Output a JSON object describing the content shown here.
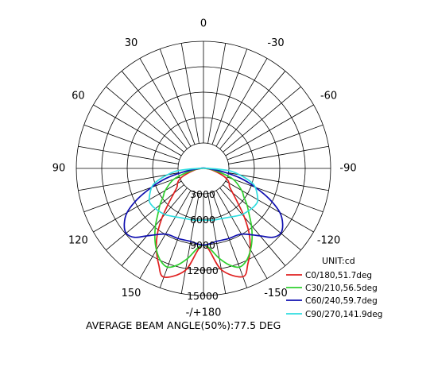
{
  "chart_data": {
    "type": "polar",
    "title": "",
    "footer": "AVERAGE BEAM  ANGLE(50%):77.5  DEG",
    "unit_label": "UNIT:cd",
    "angle_labels": [
      "-/+180",
      "150",
      "120",
      "90",
      "60",
      "30",
      "0",
      "-30",
      "-60",
      "-90",
      "-120",
      "-150"
    ],
    "angle_label_values": [
      180,
      150,
      120,
      90,
      60,
      30,
      0,
      -30,
      -60,
      -90,
      -120,
      -150
    ],
    "radial_labels": [
      "3000",
      "6000",
      "9000",
      "12000",
      "15000"
    ],
    "radial_label_values": [
      3000,
      6000,
      9000,
      12000,
      15000
    ],
    "rmax": 15000,
    "angle_grid_step_deg": 10,
    "grid": true,
    "legend_position": "bottom-right",
    "series": [
      {
        "name": "C0/180,51.7deg",
        "color": "#e02020",
        "points": [
          [
            0,
            9050
          ],
          [
            10,
            12150
          ],
          [
            20,
            13600
          ],
          [
            25,
            12400
          ],
          [
            30,
            11000
          ],
          [
            35,
            9400
          ],
          [
            40,
            7500
          ],
          [
            45,
            5700
          ],
          [
            50,
            4500
          ],
          [
            55,
            3750
          ],
          [
            60,
            3500
          ],
          [
            65,
            3100
          ],
          [
            70,
            2400
          ],
          [
            80,
            1000
          ],
          [
            90,
            150
          ],
          [
            -90,
            150
          ],
          [
            -80,
            1050
          ],
          [
            -70,
            2450
          ],
          [
            -65,
            3150
          ],
          [
            -60,
            3550
          ],
          [
            -55,
            3800
          ],
          [
            -50,
            4550
          ],
          [
            -45,
            5800
          ],
          [
            -40,
            7600
          ],
          [
            -35,
            9500
          ],
          [
            -30,
            11100
          ],
          [
            -25,
            12500
          ],
          [
            -20,
            13650
          ],
          [
            -10,
            12200
          ]
        ]
      },
      {
        "name": "C30/210,56.5deg",
        "color": "#30d030",
        "points": [
          [
            0,
            9050
          ],
          [
            10,
            10800
          ],
          [
            15,
            11800
          ],
          [
            20,
            12400
          ],
          [
            25,
            12000
          ],
          [
            30,
            11100
          ],
          [
            35,
            10000
          ],
          [
            40,
            8800
          ],
          [
            45,
            7600
          ],
          [
            50,
            6700
          ],
          [
            55,
            5800
          ],
          [
            60,
            5200
          ],
          [
            70,
            3700
          ],
          [
            80,
            1400
          ],
          [
            90,
            300
          ],
          [
            -90,
            300
          ],
          [
            -80,
            1400
          ],
          [
            -70,
            3700
          ],
          [
            -60,
            5200
          ],
          [
            -55,
            5800
          ],
          [
            -50,
            6700
          ],
          [
            -45,
            7600
          ],
          [
            -40,
            8800
          ],
          [
            -35,
            10000
          ],
          [
            -30,
            11100
          ],
          [
            -25,
            12000
          ],
          [
            -20,
            12400
          ],
          [
            -15,
            11800
          ],
          [
            -10,
            10800
          ]
        ]
      },
      {
        "name": "C60/240,59.7deg",
        "color": "#1010b0",
        "points": [
          [
            0,
            9050
          ],
          [
            10,
            8750
          ],
          [
            20,
            8800
          ],
          [
            30,
            8950
          ],
          [
            40,
            10400
          ],
          [
            45,
            11500
          ],
          [
            50,
            11900
          ],
          [
            55,
            11400
          ],
          [
            60,
            10400
          ],
          [
            65,
            8600
          ],
          [
            70,
            6500
          ],
          [
            75,
            4600
          ],
          [
            80,
            2400
          ],
          [
            90,
            450
          ],
          [
            -90,
            450
          ],
          [
            -80,
            2400
          ],
          [
            -75,
            4600
          ],
          [
            -70,
            6500
          ],
          [
            -65,
            8600
          ],
          [
            -60,
            10400
          ],
          [
            -55,
            11400
          ],
          [
            -50,
            11900
          ],
          [
            -45,
            11500
          ],
          [
            -40,
            10400
          ],
          [
            -30,
            8950
          ],
          [
            -20,
            8800
          ],
          [
            -10,
            8750
          ]
        ]
      },
      {
        "name": "C90/270,141.9deg",
        "color": "#30dde0",
        "points": [
          [
            0,
            6100
          ],
          [
            10,
            6200
          ],
          [
            20,
            6300
          ],
          [
            30,
            6600
          ],
          [
            40,
            7100
          ],
          [
            50,
            7400
          ],
          [
            55,
            7500
          ],
          [
            60,
            7400
          ],
          [
            70,
            6500
          ],
          [
            75,
            5600
          ],
          [
            80,
            4300
          ],
          [
            85,
            3000
          ],
          [
            90,
            600
          ],
          [
            -90,
            600
          ],
          [
            -85,
            3000
          ],
          [
            -80,
            4300
          ],
          [
            -75,
            5600
          ],
          [
            -70,
            6500
          ],
          [
            -60,
            7400
          ],
          [
            -55,
            7500
          ],
          [
            -50,
            7400
          ],
          [
            -40,
            7100
          ],
          [
            -30,
            6600
          ],
          [
            -20,
            6300
          ],
          [
            -10,
            6200
          ]
        ]
      }
    ]
  }
}
